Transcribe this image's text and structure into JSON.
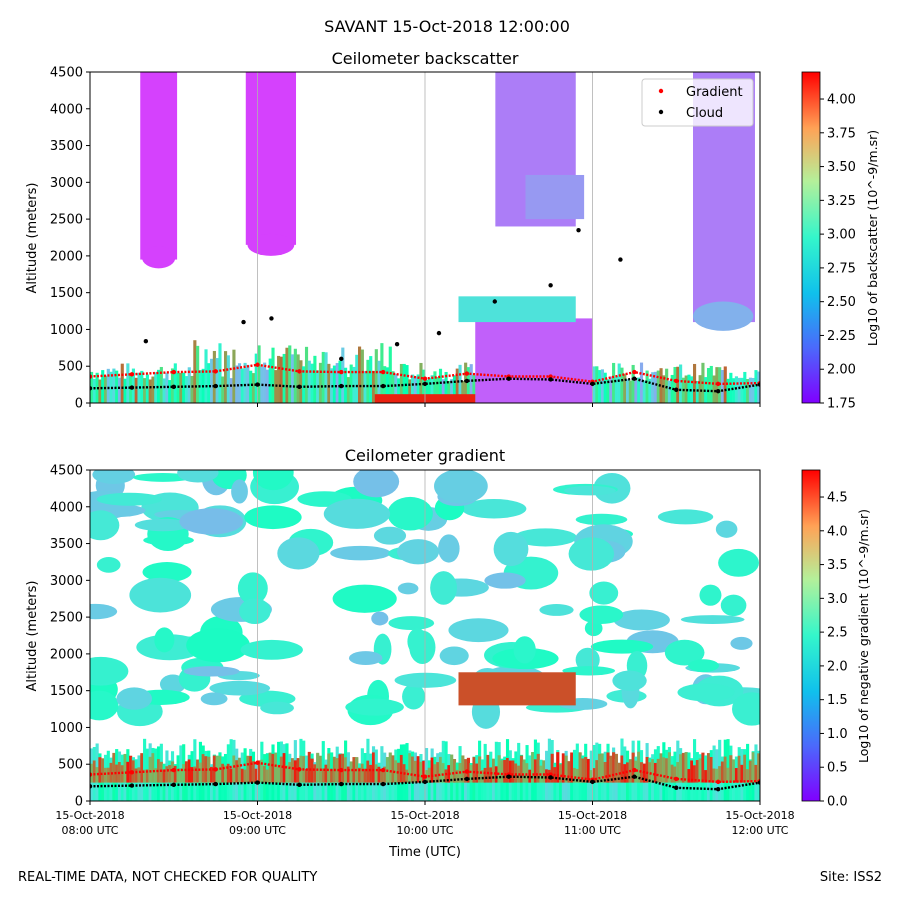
{
  "suptitle": "SAVANT 15-Oct-2018 12:00:00",
  "footer_left": "REAL-TIME DATA, NOT CHECKED FOR QUALITY",
  "footer_right": "Site: ISS2",
  "colors": {
    "gradient_marker": "#ff0000",
    "cloud_marker": "#000000",
    "colormap": "rainbow"
  },
  "chart_data": [
    {
      "type": "heatmap",
      "title": "Ceilometer backscatter",
      "xlabel": "",
      "ylabel": "Altitude (meters)",
      "xlim": [
        "15-Oct-2018 08:00 UTC",
        "15-Oct-2018 12:00 UTC"
      ],
      "ylim": [
        0,
        4500
      ],
      "yticks": [
        "0",
        "500",
        "1000",
        "1500",
        "2000",
        "2500",
        "3000",
        "3500",
        "4000",
        "4500"
      ],
      "xtick_hours": [
        8,
        9,
        10,
        11,
        12
      ],
      "grid": "vertical",
      "colorbar": {
        "label": "Log10 of backscatter (10^-9/m.sr)",
        "range": [
          1.75,
          4.2
        ],
        "ticks": [
          "1.75",
          "2.00",
          "2.25",
          "2.50",
          "2.75",
          "3.00",
          "3.25",
          "3.50",
          "3.75",
          "4.00"
        ]
      },
      "legend": {
        "placement": "top-right",
        "entries": [
          "Gradient",
          "Cloud"
        ]
      },
      "series": [
        {
          "name": "Gradient",
          "x_hours": [
            8.0,
            8.25,
            8.5,
            8.75,
            9.0,
            9.25,
            9.5,
            9.75,
            10.0,
            10.25,
            10.5,
            10.75,
            11.0,
            11.25,
            11.5,
            11.75,
            12.0
          ],
          "values": [
            360,
            390,
            420,
            430,
            520,
            430,
            420,
            420,
            330,
            400,
            360,
            360,
            290,
            420,
            300,
            260,
            270
          ]
        },
        {
          "name": "Cloud",
          "x_hours": [
            8.0,
            8.25,
            8.5,
            8.75,
            9.0,
            9.25,
            9.5,
            9.75,
            10.0,
            10.25,
            10.5,
            10.75,
            11.0,
            11.25,
            11.5,
            11.75,
            12.0
          ],
          "values": [
            200,
            210,
            220,
            230,
            250,
            220,
            230,
            230,
            260,
            300,
            330,
            320,
            260,
            330,
            180,
            160,
            250
          ]
        },
        {
          "name": "Cloud (elevated)",
          "x": [
            "08:20",
            "08:55",
            "09:05",
            "09:30",
            "09:50",
            "10:05",
            "10:25",
            "10:45",
            "10:55",
            "11:10"
          ],
          "values": [
            840,
            1100,
            1150,
            600,
            800,
            950,
            1380,
            1600,
            2350,
            1950
          ]
        }
      ]
    },
    {
      "type": "heatmap",
      "title": "Ceilometer gradient",
      "xlabel": "Time (UTC)",
      "ylabel": "Altitude (meters)",
      "xlim": [
        "15-Oct-2018 08:00 UTC",
        "15-Oct-2018 12:00 UTC"
      ],
      "ylim": [
        0,
        4500
      ],
      "yticks": [
        "0",
        "500",
        "1000",
        "1500",
        "2000",
        "2500",
        "3000",
        "3500",
        "4000",
        "4500"
      ],
      "xtick_hours": [
        8,
        9,
        10,
        11,
        12
      ],
      "xticks": [
        "15-Oct-2018 08:00 UTC",
        "15-Oct-2018 09:00 UTC",
        "15-Oct-2018 10:00 UTC",
        "15-Oct-2018 11:00 UTC",
        "15-Oct-2018 12:00 UTC"
      ],
      "grid": "vertical",
      "colorbar": {
        "label": "Log10 of negative gradient (10^-9/m.sr)",
        "range": [
          0,
          4.9
        ],
        "ticks": [
          "0.0",
          "0.5",
          "1.0",
          "1.5",
          "2.0",
          "2.5",
          "3.0",
          "3.5",
          "4.0",
          "4.5"
        ]
      },
      "series": [
        {
          "name": "Gradient",
          "x_hours": [
            8.0,
            8.25,
            8.5,
            8.75,
            9.0,
            9.25,
            9.5,
            9.75,
            10.0,
            10.25,
            10.5,
            10.75,
            11.0,
            11.25,
            11.5,
            11.75,
            12.0
          ],
          "values": [
            360,
            390,
            420,
            430,
            520,
            430,
            420,
            420,
            330,
            400,
            360,
            360,
            290,
            420,
            300,
            260,
            270
          ]
        },
        {
          "name": "Cloud",
          "x_hours": [
            8.0,
            8.25,
            8.5,
            8.75,
            9.0,
            9.25,
            9.5,
            9.75,
            10.0,
            10.25,
            10.5,
            10.75,
            11.0,
            11.25,
            11.5,
            11.75,
            12.0
          ],
          "values": [
            200,
            210,
            220,
            230,
            250,
            220,
            230,
            230,
            260,
            300,
            330,
            320,
            260,
            330,
            180,
            160,
            250
          ]
        }
      ]
    }
  ]
}
